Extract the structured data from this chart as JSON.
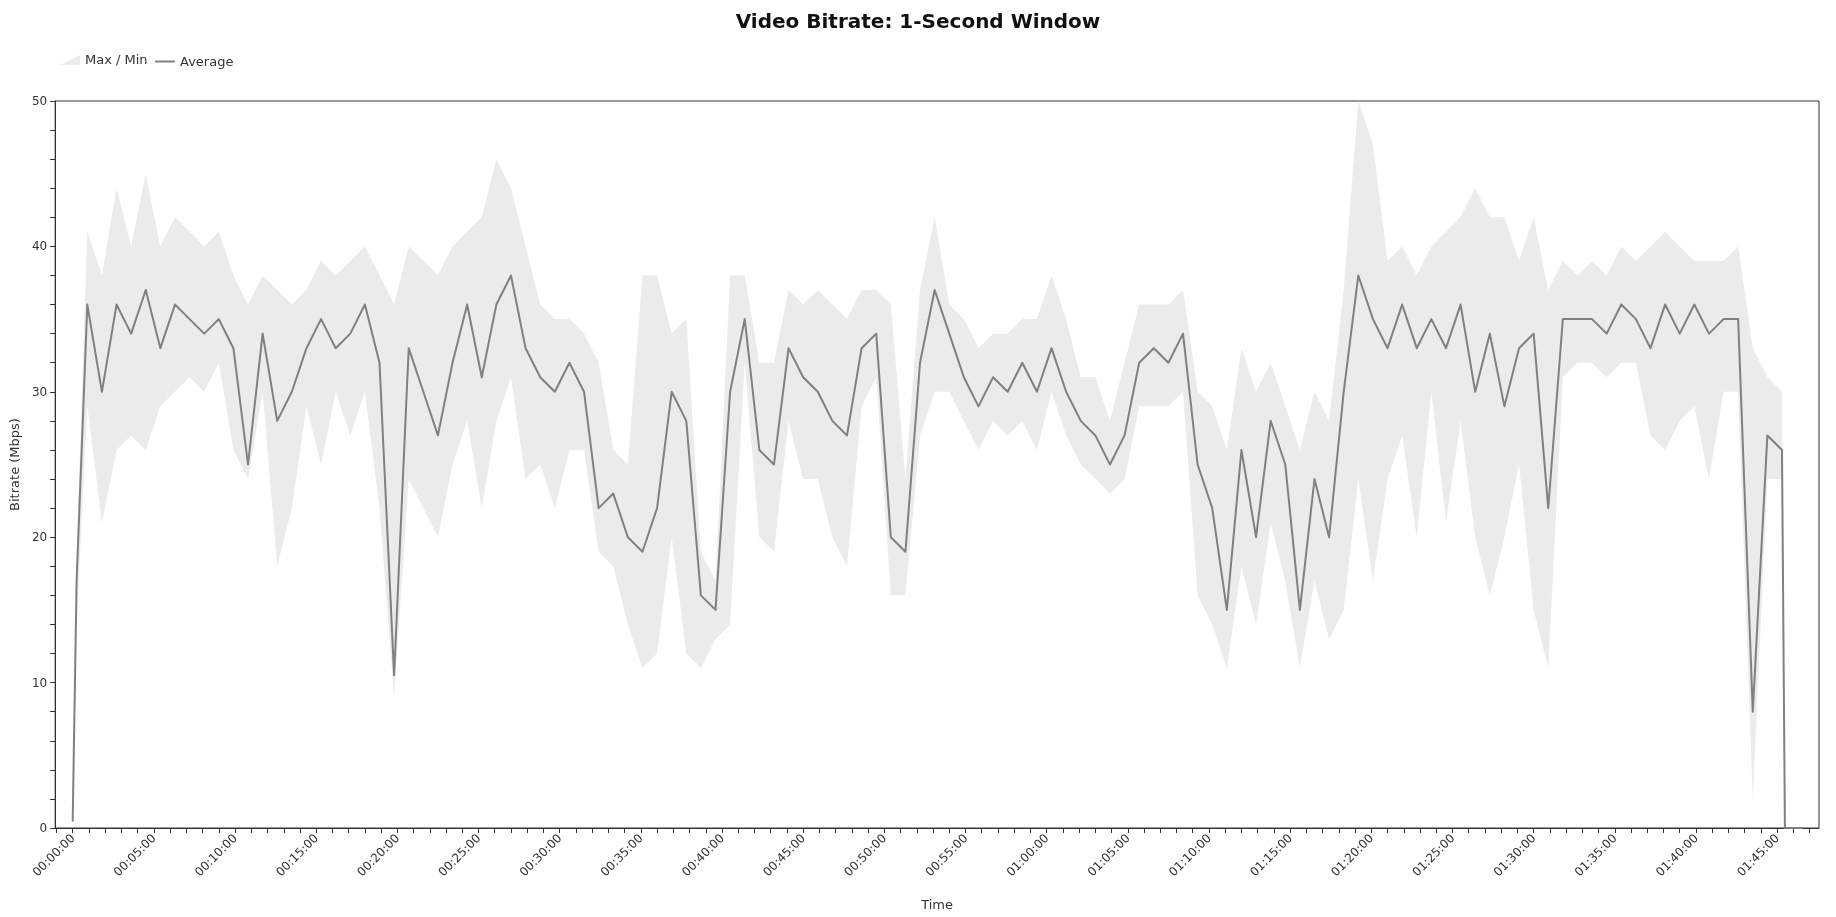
{
  "chart_data": {
    "type": "line",
    "title": "Video Bitrate: 1-Second Window",
    "annotations": [
      "Max / Min"
    ],
    "xlabel": "Time",
    "ylabel": "Bitrate (Mbps)",
    "legend": "top left",
    "grid": false,
    "marker": "none",
    "line_style": "solid",
    "xlim": [
      -0.018,
      1.793
    ],
    "ylim": [
      0,
      50
    ],
    "xticks": [
      {
        "value": -0.0167,
        "label": null
      },
      {
        "value": 0,
        "label": "00:00:00"
      },
      {
        "value": 0.0167,
        "label": null
      },
      {
        "value": 0.0333,
        "label": null
      },
      {
        "value": 0.05,
        "label": null
      },
      {
        "value": 0.0667,
        "label": null
      },
      {
        "value": 0.0833,
        "label": "00:05:00"
      },
      {
        "value": 0.1,
        "label": null
      },
      {
        "value": 0.1167,
        "label": null
      },
      {
        "value": 0.1333,
        "label": null
      },
      {
        "value": 0.15,
        "label": null
      },
      {
        "value": 0.1667,
        "label": "00:10:00"
      },
      {
        "value": 0.1833,
        "label": null
      },
      {
        "value": 0.2,
        "label": null
      },
      {
        "value": 0.2167,
        "label": null
      },
      {
        "value": 0.2333,
        "label": null
      },
      {
        "value": 0.25,
        "label": "00:15:00"
      },
      {
        "value": 0.2667,
        "label": null
      },
      {
        "value": 0.2833,
        "label": null
      },
      {
        "value": 0.3,
        "label": null
      },
      {
        "value": 0.3167,
        "label": null
      },
      {
        "value": 0.3333,
        "label": "00:20:00"
      },
      {
        "value": 0.35,
        "label": null
      },
      {
        "value": 0.3667,
        "label": null
      },
      {
        "value": 0.3833,
        "label": null
      },
      {
        "value": 0.4,
        "label": null
      },
      {
        "value": 0.4167,
        "label": "00:25:00"
      },
      {
        "value": 0.4333,
        "label": null
      },
      {
        "value": 0.45,
        "label": null
      },
      {
        "value": 0.4667,
        "label": null
      },
      {
        "value": 0.4833,
        "label": null
      },
      {
        "value": 0.5,
        "label": "00:30:00"
      },
      {
        "value": 0.5167,
        "label": null
      },
      {
        "value": 0.5333,
        "label": null
      },
      {
        "value": 0.55,
        "label": null
      },
      {
        "value": 0.5667,
        "label": null
      },
      {
        "value": 0.5833,
        "label": "00:35:00"
      },
      {
        "value": 0.6,
        "label": null
      },
      {
        "value": 0.6167,
        "label": null
      },
      {
        "value": 0.6333,
        "label": null
      },
      {
        "value": 0.65,
        "label": null
      },
      {
        "value": 0.6667,
        "label": "00:40:00"
      },
      {
        "value": 0.6833,
        "label": null
      },
      {
        "value": 0.7,
        "label": null
      },
      {
        "value": 0.7167,
        "label": null
      },
      {
        "value": 0.7333,
        "label": null
      },
      {
        "value": 0.75,
        "label": "00:45:00"
      },
      {
        "value": 0.7667,
        "label": null
      },
      {
        "value": 0.7833,
        "label": null
      },
      {
        "value": 0.8,
        "label": null
      },
      {
        "value": 0.8167,
        "label": null
      },
      {
        "value": 0.8333,
        "label": "00:50:00"
      },
      {
        "value": 0.85,
        "label": null
      },
      {
        "value": 0.8667,
        "label": null
      },
      {
        "value": 0.8833,
        "label": null
      },
      {
        "value": 0.9,
        "label": null
      },
      {
        "value": 0.9167,
        "label": "00:55:00"
      },
      {
        "value": 0.9333,
        "label": null
      },
      {
        "value": 0.95,
        "label": null
      },
      {
        "value": 0.9667,
        "label": null
      },
      {
        "value": 0.9833,
        "label": null
      },
      {
        "value": 1,
        "label": "01:00:00"
      },
      {
        "value": 1.0167,
        "label": null
      },
      {
        "value": 1.0333,
        "label": null
      },
      {
        "value": 1.05,
        "label": null
      },
      {
        "value": 1.0667,
        "label": null
      },
      {
        "value": 1.0833,
        "label": "01:05:00"
      },
      {
        "value": 1.1,
        "label": null
      },
      {
        "value": 1.1167,
        "label": null
      },
      {
        "value": 1.1333,
        "label": null
      },
      {
        "value": 1.15,
        "label": null
      },
      {
        "value": 1.1667,
        "label": "01:10:00"
      },
      {
        "value": 1.1833,
        "label": null
      },
      {
        "value": 1.2,
        "label": null
      },
      {
        "value": 1.2167,
        "label": null
      },
      {
        "value": 1.2333,
        "label": null
      },
      {
        "value": 1.25,
        "label": "01:15:00"
      },
      {
        "value": 1.2667,
        "label": null
      },
      {
        "value": 1.2833,
        "label": null
      },
      {
        "value": 1.3,
        "label": null
      },
      {
        "value": 1.3167,
        "label": null
      },
      {
        "value": 1.3333,
        "label": "01:20:00"
      },
      {
        "value": 1.35,
        "label": null
      },
      {
        "value": 1.3667,
        "label": null
      },
      {
        "value": 1.3833,
        "label": null
      },
      {
        "value": 1.4,
        "label": null
      },
      {
        "value": 1.4167,
        "label": "01:25:00"
      },
      {
        "value": 1.4333,
        "label": null
      },
      {
        "value": 1.45,
        "label": null
      },
      {
        "value": 1.4667,
        "label": null
      },
      {
        "value": 1.4833,
        "label": null
      },
      {
        "value": 1.5,
        "label": "01:30:00"
      },
      {
        "value": 1.5167,
        "label": null
      },
      {
        "value": 1.5333,
        "label": null
      },
      {
        "value": 1.55,
        "label": null
      },
      {
        "value": 1.5667,
        "label": null
      },
      {
        "value": 1.5833,
        "label": "01:35:00"
      },
      {
        "value": 1.6,
        "label": null
      },
      {
        "value": 1.6167,
        "label": null
      },
      {
        "value": 1.6333,
        "label": null
      },
      {
        "value": 1.65,
        "label": null
      },
      {
        "value": 1.6667,
        "label": "01:40:00"
      },
      {
        "value": 1.6833,
        "label": null
      },
      {
        "value": 1.7,
        "label": null
      },
      {
        "value": 1.7167,
        "label": null
      },
      {
        "value": 1.7333,
        "label": null
      },
      {
        "value": 1.75,
        "label": "01:45:00"
      },
      {
        "value": 1.7667,
        "label": null
      },
      {
        "value": 1.7833,
        "label": null
      }
    ],
    "yticks": [
      0,
      {
        "value": 2,
        "label": null
      },
      {
        "value": 4,
        "label": null
      },
      {
        "value": 6,
        "label": null
      },
      {
        "value": 8,
        "label": null
      },
      10,
      {
        "value": 12,
        "label": null
      },
      {
        "value": 14,
        "label": null
      },
      {
        "value": 16,
        "label": null
      },
      {
        "value": 18,
        "label": null
      },
      20,
      {
        "value": 22,
        "label": null
      },
      {
        "value": 24,
        "label": null
      },
      {
        "value": 26,
        "label": null
      },
      {
        "value": 28,
        "label": null
      },
      30,
      {
        "value": 32,
        "label": null
      },
      {
        "value": 34,
        "label": null
      },
      {
        "value": 36,
        "label": null
      },
      {
        "value": 38,
        "label": null
      },
      40,
      {
        "value": 42,
        "label": null
      },
      {
        "value": 44,
        "label": null
      },
      {
        "value": 46,
        "label": null
      },
      {
        "value": 48,
        "label": null
      },
      50
    ],
    "x": [
      0,
      0.004,
      0.015,
      0.03,
      0.045,
      0.06,
      0.075,
      0.09,
      0.105,
      0.12,
      0.135,
      0.15,
      0.165,
      0.18,
      0.195,
      0.21,
      0.225,
      0.24,
      0.255,
      0.27,
      0.285,
      0.3,
      0.315,
      0.33,
      0.345,
      0.36,
      0.375,
      0.39,
      0.405,
      0.42,
      0.435,
      0.45,
      0.465,
      0.48,
      0.495,
      0.51,
      0.525,
      0.54,
      0.555,
      0.57,
      0.585,
      0.6,
      0.615,
      0.63,
      0.645,
      0.66,
      0.675,
      0.69,
      0.705,
      0.72,
      0.735,
      0.75,
      0.765,
      0.78,
      0.795,
      0.81,
      0.825,
      0.84,
      0.855,
      0.87,
      0.885,
      0.9,
      0.915,
      0.93,
      0.945,
      0.96,
      0.975,
      0.99,
      1.005,
      1.02,
      1.035,
      1.05,
      1.065,
      1.08,
      1.095,
      1.11,
      1.125,
      1.14,
      1.155,
      1.17,
      1.185,
      1.2,
      1.215,
      1.23,
      1.245,
      1.26,
      1.275,
      1.29,
      1.305,
      1.32,
      1.335,
      1.35,
      1.365,
      1.38,
      1.395,
      1.41,
      1.425,
      1.44,
      1.455,
      1.47,
      1.485,
      1.5,
      1.515,
      1.53,
      1.545,
      1.56,
      1.575,
      1.59,
      1.605,
      1.62,
      1.635,
      1.65,
      1.665,
      1.68,
      1.695,
      1.71,
      1.725,
      1.74,
      1.755,
      1.758,
      1.775
    ],
    "series": [
      {
        "name": "Average",
        "color": "#808080",
        "lower": [
          0,
          14,
          29,
          21,
          26,
          27,
          26,
          29,
          30,
          31,
          30,
          32,
          26,
          24,
          30,
          18,
          22,
          29,
          25,
          30,
          27,
          30,
          22,
          9,
          24,
          22,
          20,
          25,
          28,
          22,
          28,
          31,
          24,
          25,
          22,
          26,
          26,
          19,
          18,
          14,
          11,
          12,
          20,
          12,
          11,
          13,
          14,
          32,
          20,
          19,
          28,
          24,
          24,
          20,
          18,
          29,
          31,
          16,
          16,
          27,
          30,
          30,
          28,
          26,
          28,
          27,
          28,
          26,
          30,
          27,
          25,
          24,
          23,
          24,
          29,
          29,
          29,
          30,
          16,
          14,
          11,
          18,
          14,
          21,
          17,
          11,
          17,
          13,
          15,
          24,
          17,
          24,
          27,
          20,
          30,
          21,
          28,
          20,
          16,
          20,
          25,
          15,
          11,
          31,
          32,
          32,
          31,
          32,
          32,
          27,
          26,
          28,
          29,
          24,
          30,
          30,
          2,
          24,
          24,
          0,
          0
        ],
        "upper": [
          1,
          19,
          41,
          38,
          44,
          40,
          45,
          40,
          42,
          41,
          40,
          41,
          38,
          36,
          38,
          37,
          36,
          37,
          39,
          38,
          39,
          40,
          38,
          36,
          40,
          39,
          38,
          40,
          41,
          42,
          46,
          44,
          40,
          36,
          35,
          35,
          34,
          32,
          26,
          25,
          38,
          38,
          34,
          35,
          19,
          17,
          38,
          38,
          32,
          32,
          37,
          36,
          37,
          36,
          35,
          37,
          37,
          36,
          24,
          37,
          42,
          36,
          35,
          33,
          34,
          34,
          35,
          35,
          38,
          35,
          31,
          31,
          28,
          32,
          36,
          36,
          36,
          37,
          30,
          29,
          26,
          33,
          30,
          32,
          29,
          26,
          30,
          28,
          37,
          50,
          47,
          39,
          40,
          38,
          40,
          41,
          42,
          44,
          42,
          42,
          39,
          42,
          37,
          39,
          38,
          39,
          38,
          40,
          39,
          40,
          41,
          40,
          39,
          39,
          39,
          40,
          33,
          31,
          30,
          0,
          0
        ],
        "values": [
          0.5,
          17,
          36,
          30,
          36,
          34,
          37,
          33,
          36,
          35,
          34,
          35,
          33,
          25,
          34,
          28,
          30,
          33,
          35,
          33,
          34,
          36,
          32,
          10.5,
          33,
          30,
          27,
          32,
          36,
          31,
          36,
          38,
          33,
          31,
          30,
          32,
          30,
          22,
          23,
          20,
          19,
          22,
          30,
          28,
          16,
          15,
          30,
          35,
          26,
          25,
          33,
          31,
          30,
          28,
          27,
          33,
          34,
          20,
          19,
          32,
          37,
          34,
          31,
          29,
          31,
          30,
          32,
          30,
          33,
          30,
          28,
          27,
          25,
          27,
          32,
          33,
          32,
          34,
          25,
          22,
          15,
          26,
          20,
          28,
          25,
          15,
          24,
          20,
          30,
          38,
          35,
          33,
          36,
          33,
          35,
          33,
          36,
          30,
          34,
          29,
          33,
          34,
          22,
          35,
          35,
          35,
          34,
          36,
          35,
          33,
          36,
          34,
          36,
          34,
          35,
          35,
          8,
          27,
          26,
          0,
          0
        ]
      }
    ]
  }
}
